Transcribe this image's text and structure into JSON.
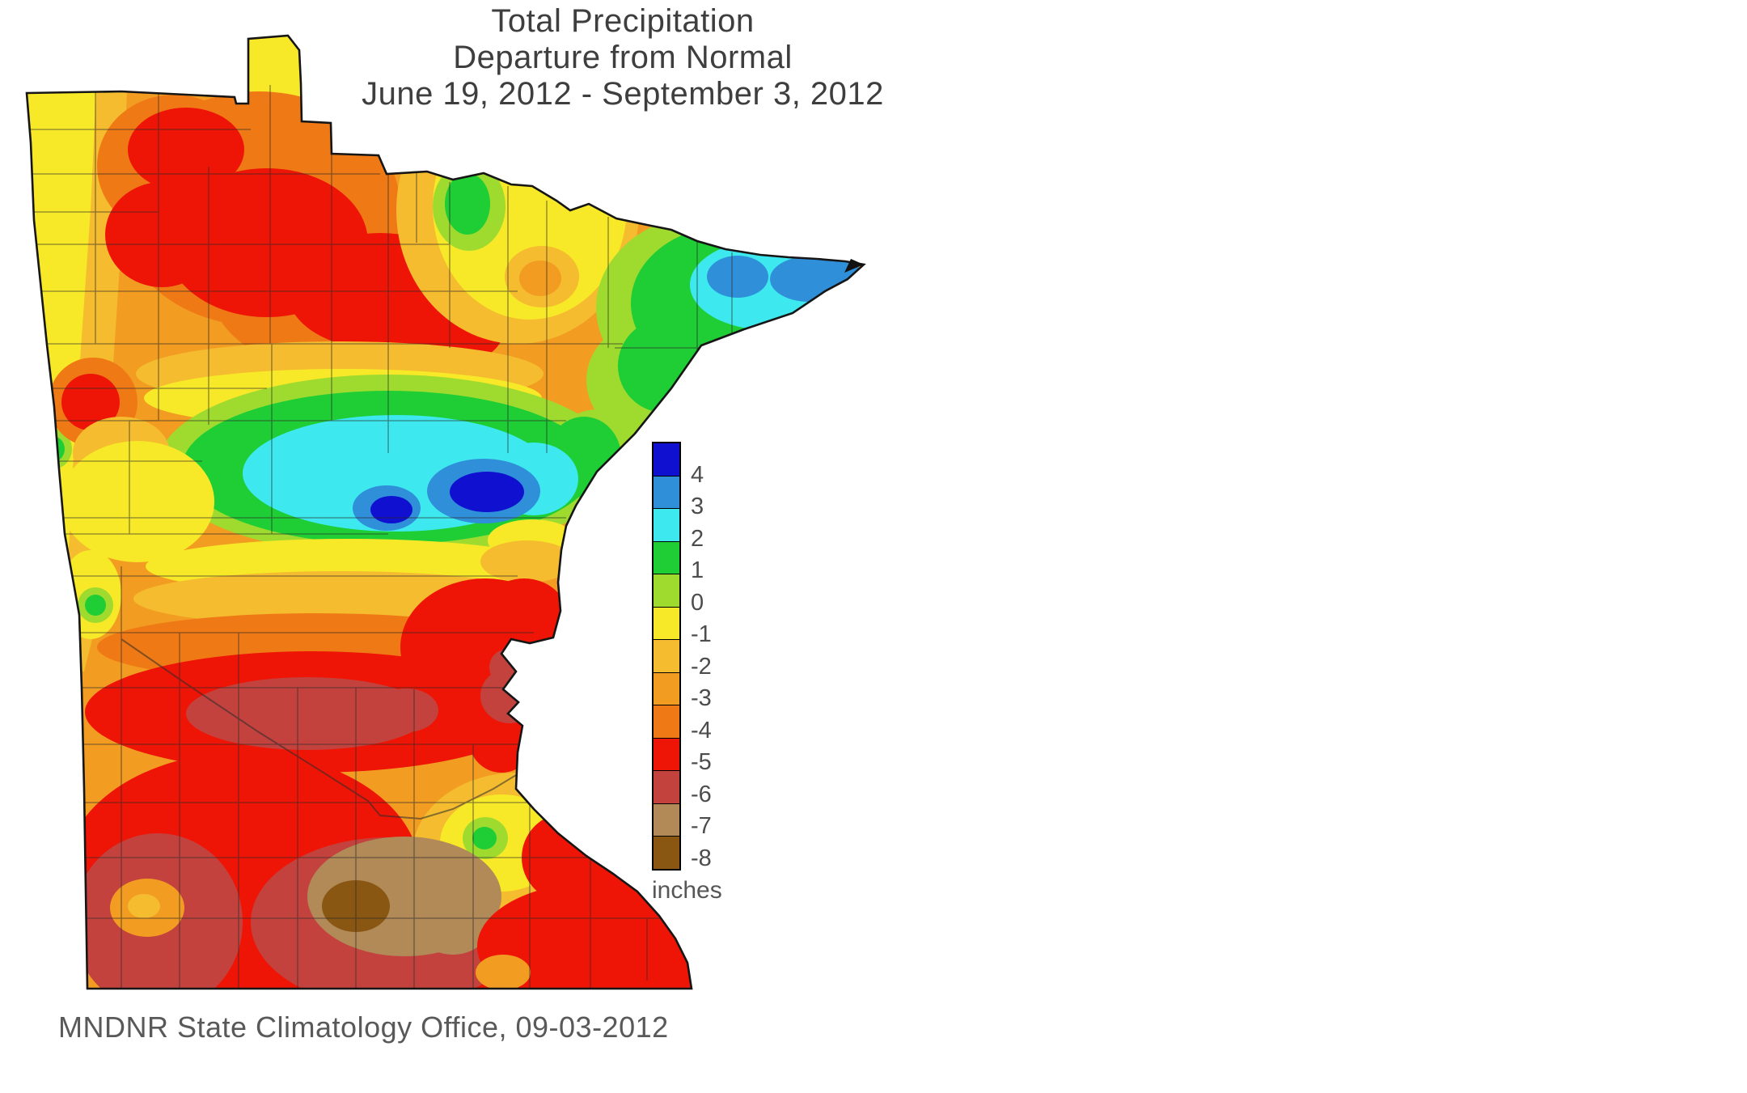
{
  "figure": {
    "title_line1": "Total Precipitation",
    "title_line2": "Departure from Normal",
    "title_line3": "June 19, 2012 - September 3, 2012",
    "attribution": "MNDNR State Climatology Office, 09-03-2012"
  },
  "legend": {
    "values": [
      "4",
      "3",
      "2",
      "1",
      "0",
      "-1",
      "-2",
      "-3",
      "-4",
      "-5",
      "-6",
      "-7",
      "-8"
    ],
    "unit_label": "inches",
    "colors": [
      "#0f10d0",
      "#2f8fd9",
      "#3de9ef",
      "#1fcd35",
      "#9fdb2f",
      "#f8e928",
      "#f4bc2e",
      "#f29c22",
      "#ef7a15",
      "#ee1506",
      "#c4423e",
      "#b18a58",
      "#8a5713"
    ]
  },
  "map": {
    "region": "Minnesota",
    "kind": "Filled-contour precipitation departure map with county boundaries"
  }
}
